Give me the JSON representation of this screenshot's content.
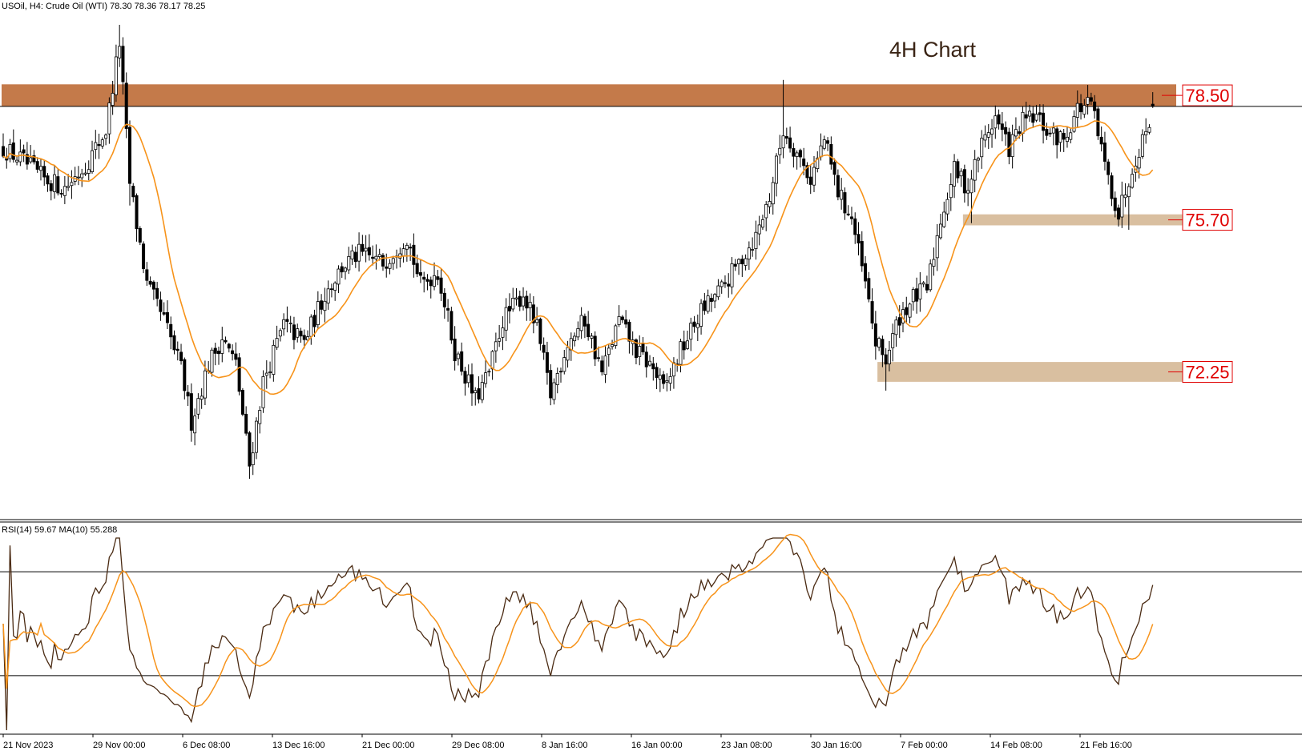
{
  "header": {
    "symbol_info": "USOil, H4:  Crude Oil (WTI)  78.30 78.36 78.17 78.25"
  },
  "chart_data": [
    {
      "type": "candlestick",
      "title": "4H Chart",
      "timeframe": "H4",
      "ylim": [
        69.4,
        80.3
      ],
      "current_price": 78.25,
      "current_price_line_color": "#000000",
      "candle_color": "#000000",
      "ma_color": "#f7931a",
      "x_tick_labels": [
        "21 Nov 2023",
        "29 Nov 00:00",
        "6 Dec 08:00",
        "13 Dec 16:00",
        "21 Dec 00:00",
        "29 Dec 08:00",
        "8 Jan 16:00",
        "16 Jan 00:00",
        "23 Jan 08:00",
        "30 Jan 16:00",
        "7 Feb 00:00",
        "14 Feb 08:00",
        "21 Feb 16:00"
      ],
      "zones": [
        {
          "label": "78.50",
          "low": 78.25,
          "high": 78.75,
          "color": "#c47a4a",
          "start_bar": 0
        },
        {
          "label": "75.70",
          "low": 75.55,
          "high": 75.8,
          "color": "#d9bfa0",
          "start_bar": 281
        },
        {
          "label": "72.25",
          "low": 72.0,
          "high": 72.45,
          "color": "#d9bfa0",
          "start_bar": 256
        }
      ],
      "price_anchors": [
        [
          0,
          77.3
        ],
        [
          6,
          77.0
        ],
        [
          12,
          76.6
        ],
        [
          18,
          76.4
        ],
        [
          24,
          76.9
        ],
        [
          30,
          77.7
        ],
        [
          34,
          79.7
        ],
        [
          37,
          76.5
        ],
        [
          42,
          74.2
        ],
        [
          47,
          73.4
        ],
        [
          52,
          72.3
        ],
        [
          55,
          71.1
        ],
        [
          60,
          72.4
        ],
        [
          64,
          73.0
        ],
        [
          68,
          72.4
        ],
        [
          72,
          70.1
        ],
        [
          76,
          72.0
        ],
        [
          82,
          73.3
        ],
        [
          88,
          72.9
        ],
        [
          94,
          74.0
        ],
        [
          99,
          74.6
        ],
        [
          104,
          74.9
        ],
        [
          111,
          74.7
        ],
        [
          118,
          75.3
        ],
        [
          122,
          74.2
        ],
        [
          127,
          74.5
        ],
        [
          132,
          72.7
        ],
        [
          138,
          71.6
        ],
        [
          142,
          72.2
        ],
        [
          146,
          73.4
        ],
        [
          152,
          74.0
        ],
        [
          156,
          73.2
        ],
        [
          160,
          71.7
        ],
        [
          165,
          72.9
        ],
        [
          170,
          73.4
        ],
        [
          175,
          72.2
        ],
        [
          180,
          73.4
        ],
        [
          185,
          72.7
        ],
        [
          190,
          72.3
        ],
        [
          193,
          71.8
        ],
        [
          198,
          72.7
        ],
        [
          204,
          73.6
        ],
        [
          210,
          74.1
        ],
        [
          215,
          74.7
        ],
        [
          220,
          75.3
        ],
        [
          224,
          76.2
        ],
        [
          228,
          77.7
        ],
        [
          232,
          77.2
        ],
        [
          236,
          76.6
        ],
        [
          240,
          77.5
        ],
        [
          244,
          76.3
        ],
        [
          248,
          75.7
        ],
        [
          252,
          74.2
        ],
        [
          255,
          72.9
        ],
        [
          258,
          72.5
        ],
        [
          262,
          73.5
        ],
        [
          266,
          73.9
        ],
        [
          270,
          74.1
        ],
        [
          274,
          75.7
        ],
        [
          278,
          76.8
        ],
        [
          282,
          76.4
        ],
        [
          286,
          77.4
        ],
        [
          290,
          78.0
        ],
        [
          294,
          77.3
        ],
        [
          298,
          77.9
        ],
        [
          302,
          78.0
        ],
        [
          306,
          77.6
        ],
        [
          310,
          77.5
        ],
        [
          314,
          78.2
        ],
        [
          318,
          78.3
        ],
        [
          322,
          76.9
        ],
        [
          326,
          75.8
        ],
        [
          330,
          76.9
        ],
        [
          334,
          77.7
        ],
        [
          336,
          78.25
        ]
      ]
    },
    {
      "type": "line",
      "title": "RSI(14) 59.67 MA(10) 55.288",
      "indicator": "RSI",
      "period": 14,
      "ma_period": 10,
      "last_rsi": 59.67,
      "last_ma": 55.288,
      "levels": [
        70,
        30
      ],
      "ylim": [
        9,
        83
      ],
      "rsi_color": "#4a2a12",
      "ma_color": "#f7931a",
      "series": [
        {
          "name": "RSI(14)",
          "value": 59.67
        },
        {
          "name": "MA(10)",
          "value": 55.288
        }
      ]
    }
  ]
}
